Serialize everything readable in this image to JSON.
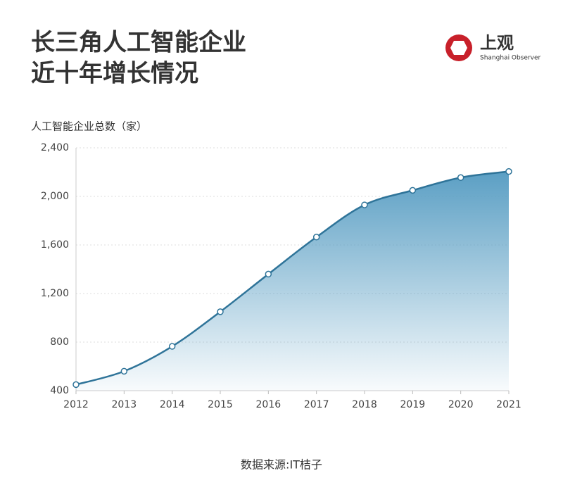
{
  "title_lines": [
    "长三角人工智能企业",
    "近十年增长情况"
  ],
  "logo": {
    "text": "上观",
    "subtext": "Shanghai Observer"
  },
  "source": "数据来源:IT桔子",
  "chart_data": {
    "type": "area",
    "y_label": "人工智能企业总数（家）",
    "categories": [
      "2012",
      "2013",
      "2014",
      "2015",
      "2016",
      "2017",
      "2018",
      "2019",
      "2020",
      "2021"
    ],
    "values": [
      450,
      560,
      765,
      1050,
      1360,
      1665,
      1930,
      2050,
      2155,
      2205
    ],
    "color": "#2f7499",
    "ylim": [
      400,
      2400
    ],
    "yticks": [
      400,
      800,
      {
        "value": 1200,
        "label": "1,200"
      },
      {
        "value": 1600,
        "label": "1,600"
      },
      {
        "value": 2000,
        "label": "2,000"
      },
      {
        "value": 2400,
        "label": "2,400"
      }
    ],
    "grid": true
  }
}
